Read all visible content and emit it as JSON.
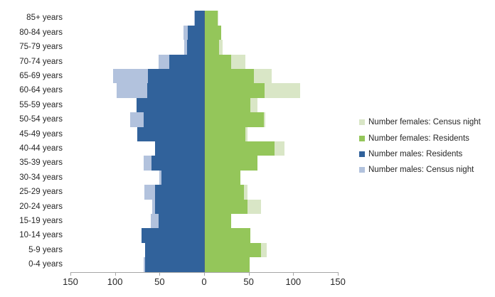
{
  "chart_data": {
    "type": "bar",
    "subtype": "population_pyramid",
    "title": "",
    "xlabel": "",
    "ylabel": "",
    "grid": false,
    "axis_color": "#A6A6A6",
    "text_color": "#262626",
    "categories": [
      "85+ years",
      "80-84 years",
      "75-79 years",
      "70-74 years",
      "65-69 years",
      "60-64 years",
      "55-59 years",
      "50-54 years",
      "45-49 years",
      "40-44 years",
      "35-39 years",
      "30-34 years",
      "25-29 years",
      "20-24 years",
      "15-19 years",
      "10-14 years",
      "5-9 years",
      "0-4 years"
    ],
    "series": [
      {
        "name": "Number males: Census night",
        "side": "left",
        "color": "#B2C2DD",
        "values": [
          11,
          23,
          22,
          51,
          102,
          98,
          76,
          83,
          75,
          55,
          68,
          50,
          67,
          58,
          60,
          70,
          66,
          68
        ]
      },
      {
        "name": "Number females: Census night",
        "side": "right",
        "color": "#D9E6C6",
        "values": [
          16,
          19,
          21,
          46,
          76,
          108,
          60,
          69,
          49,
          90,
          60,
          41,
          49,
          64,
          30,
          52,
          70,
          51
        ]
      },
      {
        "name": "Number males: Residents",
        "side": "left",
        "color": "#31629B",
        "values": [
          10,
          18,
          19,
          39,
          63,
          64,
          76,
          68,
          75,
          55,
          59,
          48,
          55,
          55,
          51,
          70,
          66,
          66
        ]
      },
      {
        "name": "Number females: Residents",
        "side": "right",
        "color": "#94C65A",
        "values": [
          15,
          19,
          17,
          30,
          56,
          68,
          52,
          67,
          46,
          79,
          60,
          41,
          45,
          49,
          30,
          52,
          64,
          51
        ]
      }
    ],
    "x_axis": {
      "tick_labels": [
        "150",
        "100",
        "50",
        "0",
        "50",
        "100",
        "150"
      ],
      "tick_values": [
        -150,
        -100,
        -50,
        0,
        50,
        100,
        150
      ],
      "range": [
        -150,
        150
      ]
    },
    "legend": {
      "position": "right",
      "items": [
        {
          "label": "Number females: Census night",
          "color": "#D9E6C6"
        },
        {
          "label": "Number females: Residents",
          "color": "#94C65A"
        },
        {
          "label": "Number males: Residents",
          "color": "#31629B"
        },
        {
          "label": "Number males: Census night",
          "color": "#B2C2DD"
        }
      ]
    }
  }
}
